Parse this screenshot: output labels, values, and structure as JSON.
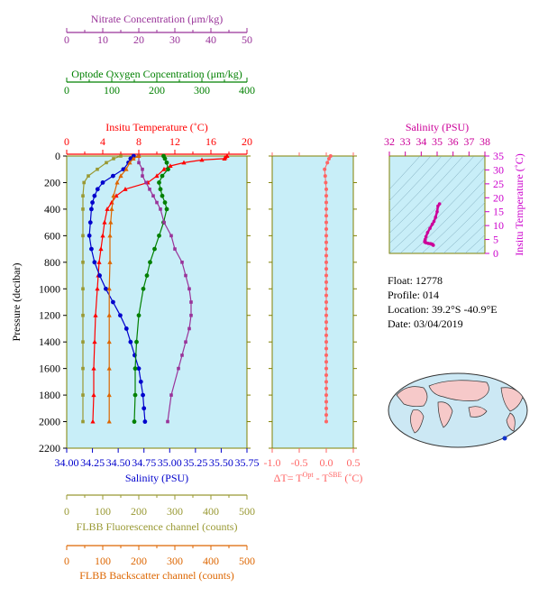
{
  "colors": {
    "temperature": "#ff0000",
    "salinity": "#0000cc",
    "oxygen": "#008000",
    "nitrate": "#993399",
    "fluorescence": "#999933",
    "backscatter": "#dd6600",
    "delta_t": "#ff6666",
    "inset_salinity": "#cc0099",
    "inset_temp_axis": "#cc00cc",
    "plot_bg": "#c8eef8",
    "frame": "#808000"
  },
  "info": {
    "float_label": "Float:",
    "float_value": "12778",
    "profile_label": "Profile:",
    "profile_value": "014",
    "location_label": "Location:",
    "location_value": "39.2°S  -40.9°E",
    "date_label": "Date:",
    "date_value": "03/04/2019"
  },
  "chart_data": [
    {
      "type": "line",
      "id": "main-profile",
      "ylabel": "Pressure (decibar)",
      "ylim": [
        0,
        2200
      ],
      "y_inverted": true,
      "yticks": [
        "0",
        "200",
        "400",
        "600",
        "800",
        "1000",
        "1200",
        "1400",
        "1600",
        "1800",
        "2000",
        "2200"
      ],
      "axes": {
        "nitrate": {
          "label": "Nitrate Concentration (μm/kg)",
          "range": [
            0,
            50
          ],
          "ticks": [
            "0",
            "10",
            "20",
            "30",
            "40",
            "50"
          ],
          "position": "top-1"
        },
        "oxygen": {
          "label": "Optode Oxygen Concentration (μm/kg)",
          "range": [
            0,
            400
          ],
          "ticks": [
            "0",
            "100",
            "200",
            "300",
            "400"
          ],
          "position": "top-2"
        },
        "temperature": {
          "label": "Insitu Temperature (˚C)",
          "range": [
            0,
            20
          ],
          "ticks": [
            "0",
            "4",
            "8",
            "12",
            "16",
            "20"
          ],
          "position": "top-3"
        },
        "salinity": {
          "label": "Salinity (PSU)",
          "range": [
            34.0,
            35.75
          ],
          "ticks": [
            "34.00",
            "34.25",
            "34.50",
            "34.75",
            "35.00",
            "35.25",
            "35.50",
            "35.75"
          ],
          "position": "bottom-1"
        },
        "fluorescence": {
          "label": "FLBB Fluorescence channel (counts)",
          "range": [
            0,
            500
          ],
          "ticks": [
            "0",
            "100",
            "200",
            "300",
            "400",
            "500"
          ],
          "position": "bottom-2"
        },
        "backscatter": {
          "label": "FLBB Backscatter channel (counts)",
          "range": [
            0,
            500
          ],
          "ticks": [
            "0",
            "100",
            "200",
            "300",
            "400",
            "500"
          ],
          "position": "bottom-3"
        }
      },
      "series": [
        {
          "name": "Insitu Temperature (˚C)",
          "axis": "temperature",
          "pressure": [
            0,
            10,
            20,
            30,
            50,
            75,
            100,
            150,
            200,
            250,
            300,
            350,
            400,
            500,
            600,
            700,
            800,
            900,
            1000,
            1200,
            1400,
            1600,
            1800,
            2000
          ],
          "values": [
            17.8,
            17.6,
            17.5,
            15.0,
            13.0,
            11.5,
            10.8,
            10.0,
            9.0,
            6.5,
            5.5,
            5.0,
            4.5,
            4.2,
            4.0,
            3.8,
            3.6,
            3.5,
            3.4,
            3.2,
            3.1,
            3.0,
            3.0,
            2.9
          ]
        },
        {
          "name": "Salinity (PSU)",
          "axis": "salinity",
          "pressure": [
            0,
            20,
            50,
            100,
            150,
            200,
            250,
            300,
            350,
            400,
            500,
            600,
            700,
            800,
            900,
            1000,
            1100,
            1200,
            1300,
            1400,
            1500,
            1600,
            1700,
            1800,
            1900,
            2000
          ],
          "values": [
            34.65,
            34.62,
            34.6,
            34.55,
            34.45,
            34.35,
            34.3,
            34.27,
            34.25,
            34.24,
            34.23,
            34.22,
            34.24,
            34.27,
            34.32,
            34.38,
            34.45,
            34.52,
            34.58,
            34.62,
            34.66,
            34.7,
            34.72,
            34.74,
            34.75,
            34.76
          ]
        },
        {
          "name": "Optode Oxygen Concentration (μm/kg)",
          "axis": "oxygen",
          "pressure": [
            0,
            20,
            50,
            100,
            150,
            200,
            250,
            300,
            350,
            400,
            500,
            600,
            700,
            800,
            900,
            1000,
            1200,
            1400,
            1600,
            1800,
            2000
          ],
          "values": [
            215,
            218,
            222,
            225,
            212,
            205,
            208,
            212,
            218,
            222,
            215,
            205,
            195,
            185,
            178,
            170,
            160,
            155,
            152,
            152,
            150
          ]
        },
        {
          "name": "Nitrate Concentration (μm/kg)",
          "axis": "nitrate",
          "pressure": [
            0,
            50,
            100,
            150,
            200,
            250,
            300,
            350,
            400,
            500,
            600,
            700,
            800,
            900,
            1000,
            1100,
            1200,
            1300,
            1400,
            1500,
            1600,
            1800,
            2000
          ],
          "values": [
            20,
            20,
            21,
            21,
            22,
            23,
            24,
            25,
            26,
            27,
            29,
            30,
            32,
            33,
            34,
            34.5,
            34.5,
            34,
            33,
            32,
            31,
            29,
            28
          ]
        },
        {
          "name": "FLBB Fluorescence channel (counts)",
          "axis": "fluorescence",
          "pressure": [
            0,
            20,
            50,
            100,
            150,
            200,
            300,
            400,
            600,
            800,
            1000,
            1200,
            1400,
            1600,
            1800,
            2000
          ],
          "values": [
            150,
            130,
            110,
            85,
            60,
            48,
            45,
            45,
            45,
            45,
            45,
            45,
            45,
            45,
            45,
            45
          ]
        },
        {
          "name": "FLBB Backscatter channel (counts)",
          "axis": "backscatter",
          "pressure": [
            0,
            20,
            50,
            100,
            150,
            200,
            300,
            400,
            500,
            600,
            800,
            1000,
            1200,
            1400,
            1600,
            1800,
            2000
          ],
          "values": [
            200,
            185,
            175,
            165,
            150,
            140,
            130,
            125,
            122,
            120,
            120,
            118,
            118,
            118,
            118,
            118,
            118
          ]
        }
      ]
    },
    {
      "type": "scatter",
      "id": "delta-t",
      "xlabel_parts": [
        "ΔT= T",
        "Opt",
        " - T",
        "SBE",
        " (˚C)"
      ],
      "xlim": [
        -1.0,
        0.5
      ],
      "xticks": [
        "-1.0",
        "-0.5",
        "0.0",
        "0.5"
      ],
      "ylim": [
        0,
        2200
      ],
      "pressure": [
        0,
        20,
        50,
        100,
        150,
        200,
        250,
        300,
        350,
        400,
        450,
        500,
        550,
        600,
        650,
        700,
        750,
        800,
        850,
        900,
        950,
        1000,
        1050,
        1100,
        1150,
        1200,
        1250,
        1300,
        1350,
        1400,
        1450,
        1500,
        1550,
        1600,
        1650,
        1700,
        1750,
        1800,
        1850,
        1900,
        1950,
        2000
      ],
      "values": [
        0.08,
        0.05,
        0.02,
        -0.03,
        -0.02,
        -0.01,
        0.0,
        0.0,
        0.0,
        0.0,
        0.0,
        0.0,
        0.0,
        0.0,
        0.0,
        0.0,
        0.0,
        0.0,
        0.0,
        0.0,
        0.0,
        0.0,
        0.0,
        0.0,
        0.0,
        0.0,
        0.0,
        0.0,
        0.0,
        0.0,
        0.0,
        0.0,
        0.0,
        0.0,
        0.0,
        0.0,
        0.0,
        0.0,
        0.0,
        0.0,
        0.0,
        0.0
      ]
    },
    {
      "type": "scatter",
      "id": "ts-diagram",
      "title": "Salinity (PSU)",
      "ylabel": "Insitu Temperature (˚C)",
      "xlim": [
        32,
        38
      ],
      "xticks": [
        "32",
        "33",
        "34",
        "35",
        "36",
        "37",
        "38"
      ],
      "ylim": [
        0,
        35
      ],
      "yticks": [
        "0",
        "5",
        "10",
        "15",
        "20",
        "25",
        "30",
        "35"
      ],
      "salinity": [
        34.76,
        34.75,
        34.74,
        34.7,
        34.66,
        34.58,
        34.45,
        34.32,
        34.24,
        34.22,
        34.23,
        34.25,
        34.3,
        34.4,
        34.55,
        34.7,
        34.8,
        34.9,
        35.0,
        35.05,
        35.15
      ],
      "temperature": [
        2.9,
        3.0,
        3.1,
        3.2,
        3.4,
        3.5,
        3.6,
        3.8,
        4.0,
        4.2,
        4.5,
        5.0,
        6.0,
        7.5,
        9.0,
        10.5,
        11.5,
        13.0,
        15.0,
        17.0,
        17.8
      ]
    }
  ]
}
